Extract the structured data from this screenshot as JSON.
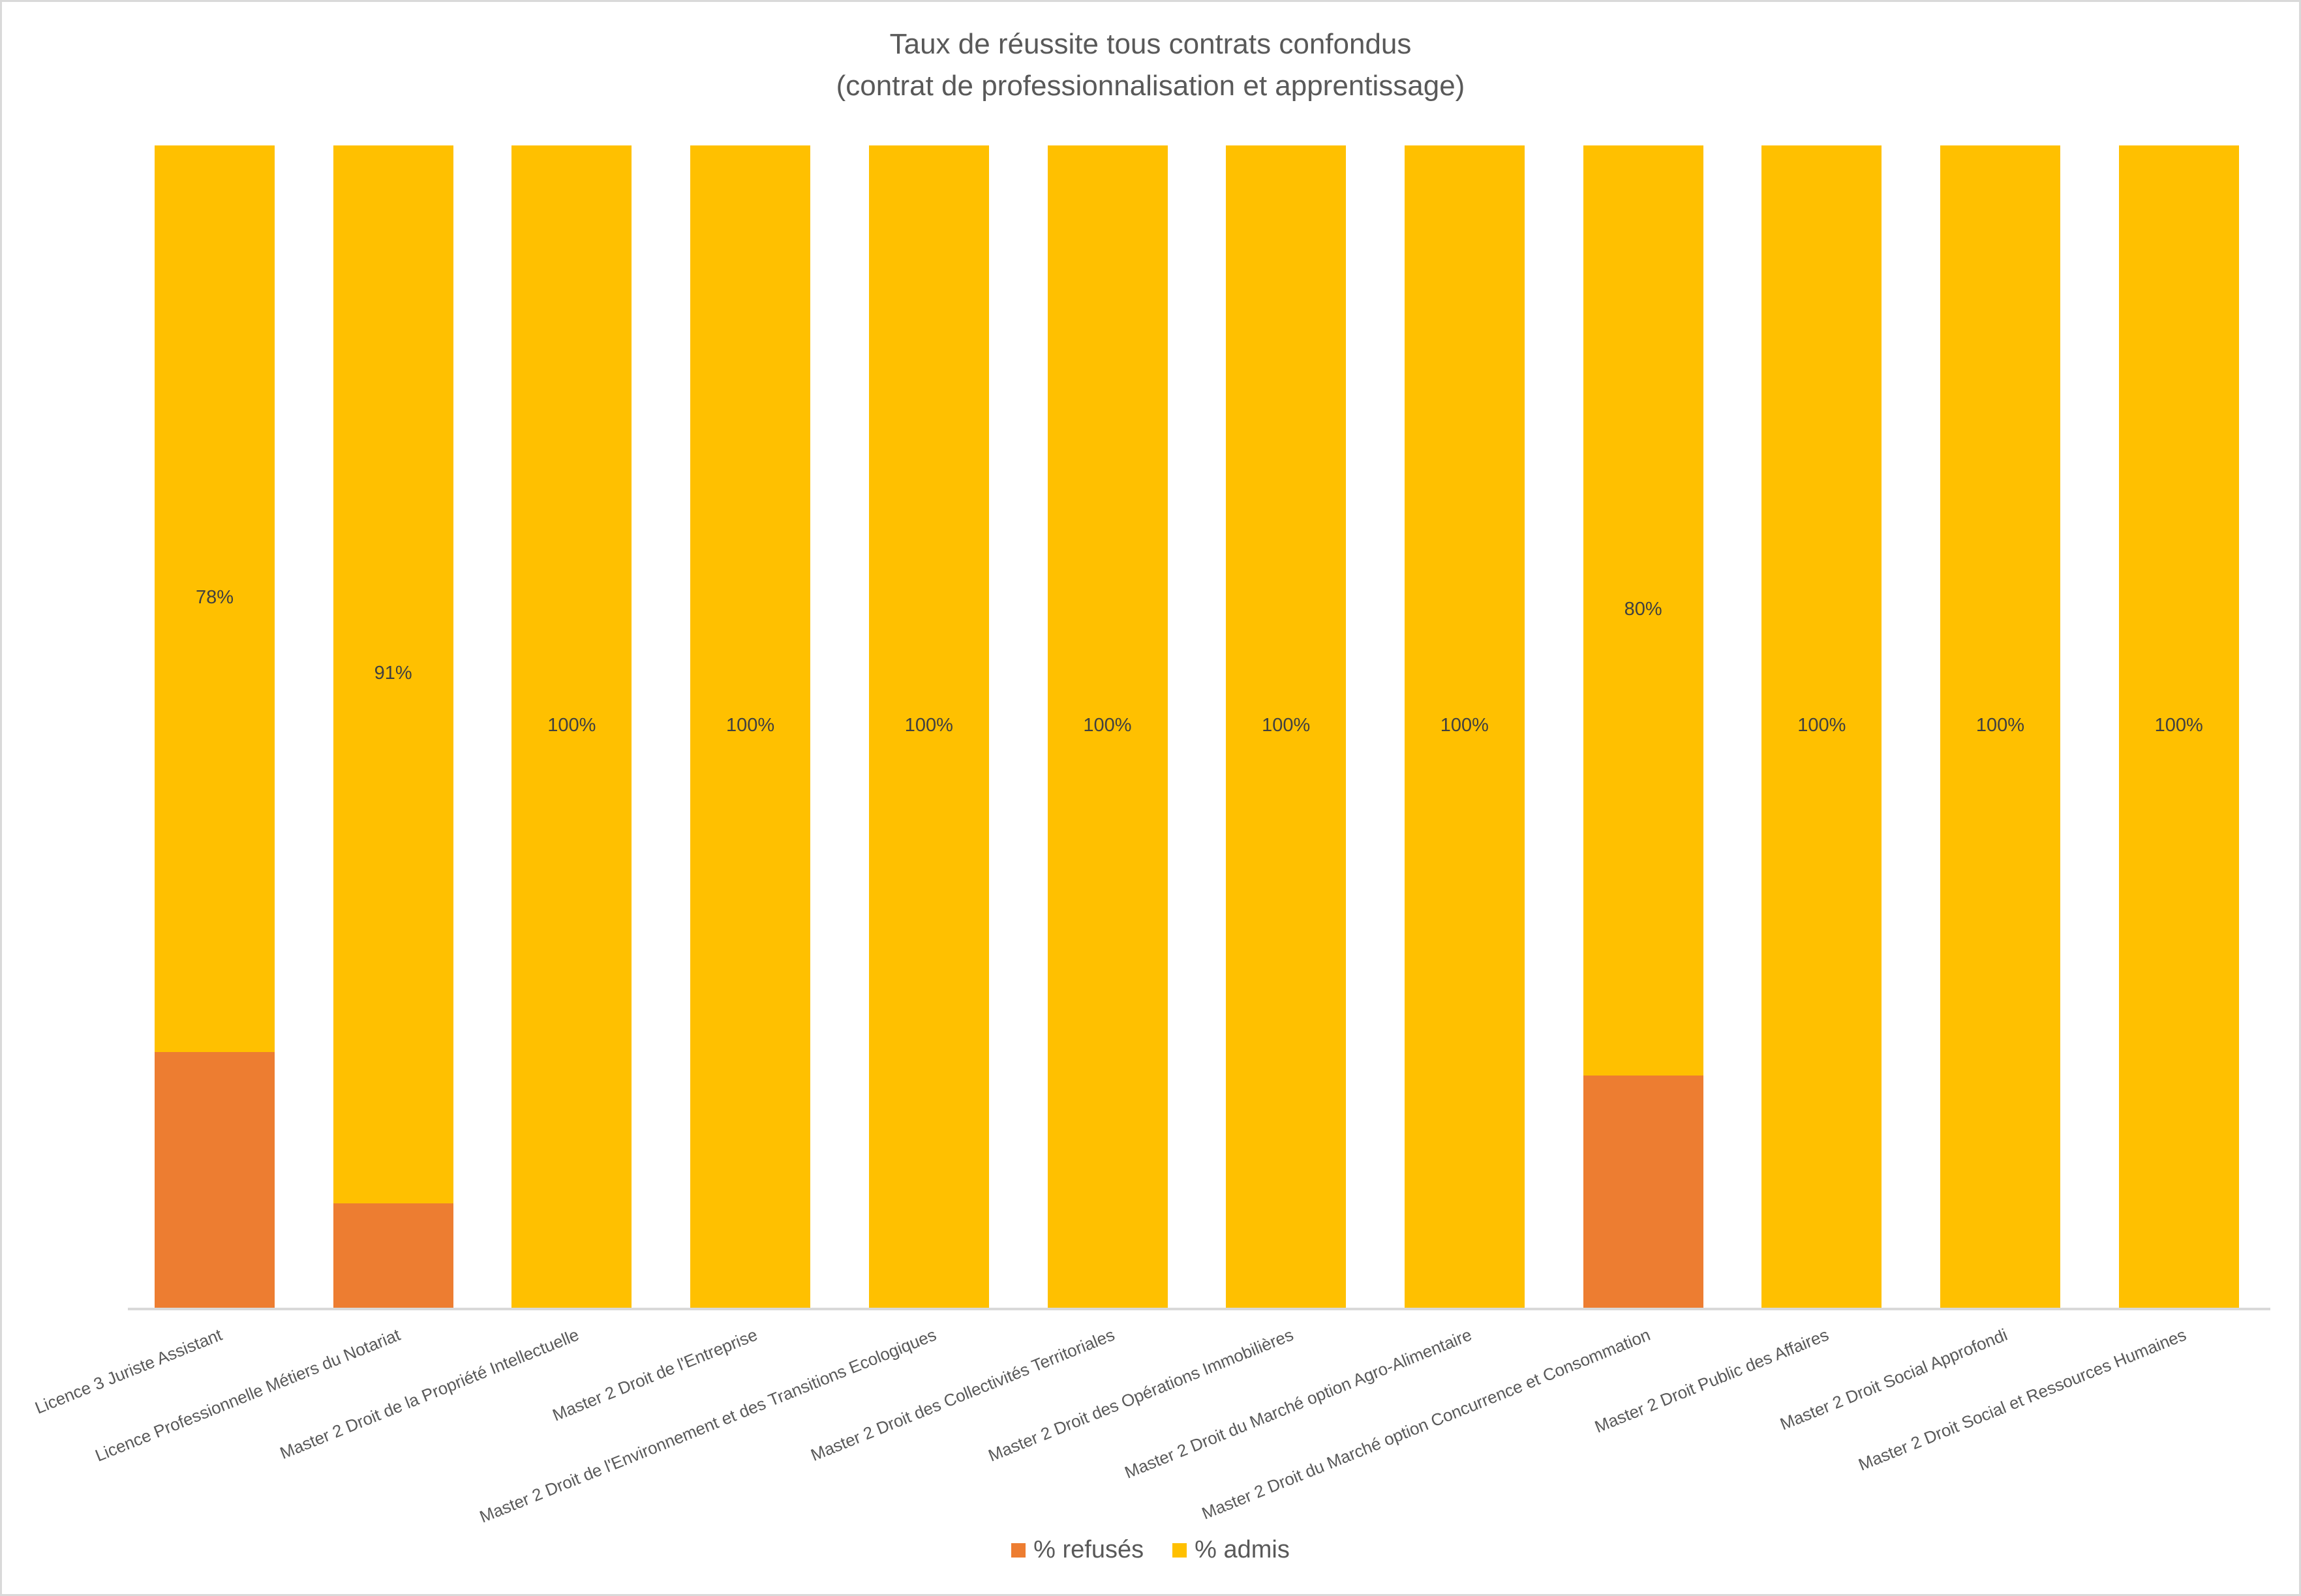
{
  "chart_data": {
    "type": "bar",
    "stacked": true,
    "title": "Taux de réussite tous contrats confondus",
    "subtitle": "(contrat de professionnalisation et apprentissage)",
    "xlabel": "",
    "ylabel": "",
    "ylim": [
      0,
      100
    ],
    "grid": false,
    "legend_position": "bottom",
    "categories": [
      "Licence 3 Juriste Assistant",
      "Licence Professionnelle Métiers du Notariat",
      "Master 2 Droit de la Propriété Intellectuelle",
      "Master 2 Droit de l'Entreprise",
      "Master 2 Droit de l'Environnement et des Transitions Ecologiques",
      "Master 2 Droit des Collectivités Territoriales",
      "Master 2 Droit des Opérations Immobilières",
      "Master 2 Droit du Marché option Agro-Alimentaire",
      "Master 2 Droit du Marché option Concurrence et Consommation",
      "Master 2 Droit Public des Affaires",
      "Master 2 Droit Social Approfondi",
      "Master 2 Droit Social et Ressources Humaines"
    ],
    "series": [
      {
        "name": "% refusés",
        "color": "#ED7D31",
        "values": [
          22,
          9,
          0,
          0,
          0,
          0,
          0,
          0,
          20,
          0,
          0,
          0
        ]
      },
      {
        "name": "% admis",
        "color": "#FFC000",
        "values": [
          78,
          91,
          100,
          100,
          100,
          100,
          100,
          100,
          80,
          100,
          100,
          100
        ],
        "data_labels": [
          "78%",
          "91%",
          "100%",
          "100%",
          "100%",
          "100%",
          "100%",
          "100%",
          "80%",
          "100%",
          "100%",
          "100%"
        ]
      }
    ]
  }
}
